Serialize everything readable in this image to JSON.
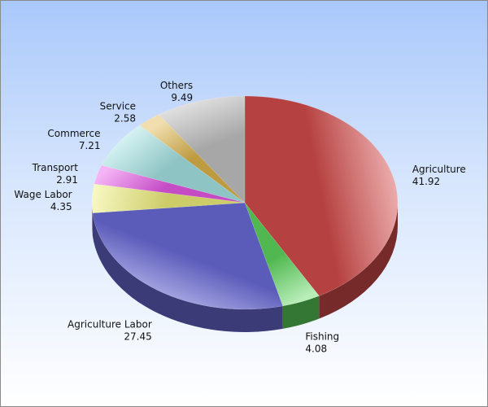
{
  "chart_data": {
    "type": "pie",
    "title": "",
    "three_d": true,
    "series": [
      {
        "name": "",
        "slices": [
          {
            "label": "Agriculture",
            "value": 41.92,
            "color": "#d64d4d",
            "display": "41.92"
          },
          {
            "label": "Fishing",
            "value": 4.08,
            "color": "#5fd85f",
            "display": "4.08"
          },
          {
            "label": "Agriculture Labor",
            "value": 27.45,
            "color": "#6b6bdb",
            "display": "27.45"
          },
          {
            "label": "Wage Labor",
            "value": 4.35,
            "color": "#f0f07a",
            "display": "4.35"
          },
          {
            "label": "Transport",
            "value": 2.91,
            "color": "#e859e8",
            "display": "2.91"
          },
          {
            "label": "Commerce",
            "value": 7.21,
            "color": "#a8e6e6",
            "display": "7.21"
          },
          {
            "label": "Service",
            "value": 2.58,
            "color": "#e0b64c",
            "display": "2.58"
          },
          {
            "label": "Others",
            "value": 9.49,
            "color": "#c4c4c4",
            "display": "9.49"
          }
        ]
      }
    ],
    "legend": "none"
  }
}
